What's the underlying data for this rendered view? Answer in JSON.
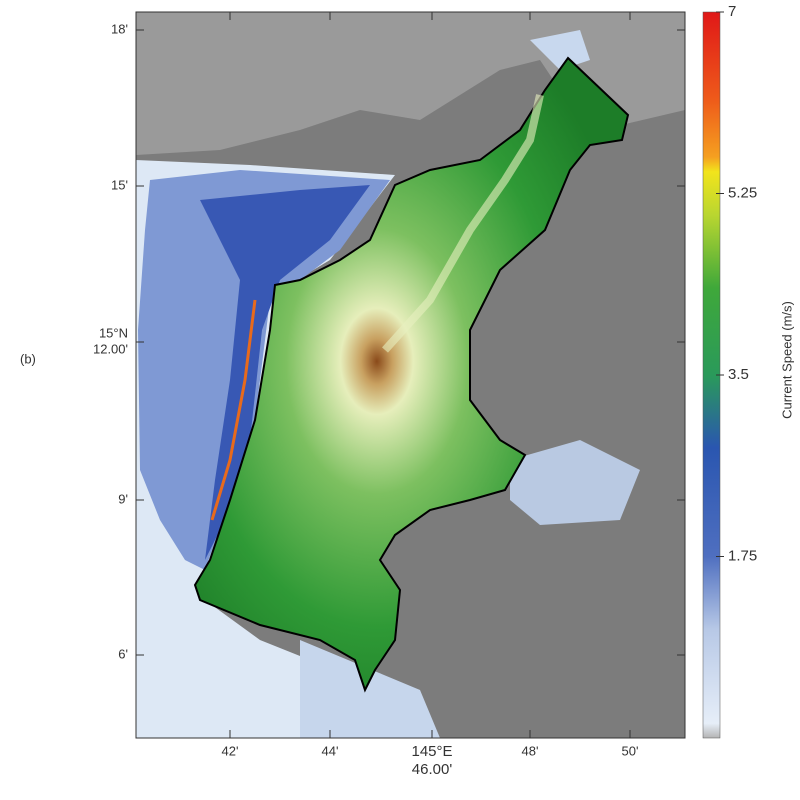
{
  "panel_label": "(b)",
  "map": {
    "lat_labels": [
      [
        "18'"
      ],
      [
        "15'"
      ],
      [
        "15°N",
        "12.00'"
      ],
      [
        "9'"
      ],
      [
        "6'"
      ]
    ],
    "lon_labels": [
      [
        "42'"
      ],
      [
        "44'"
      ],
      [
        "145°E",
        "46.00'"
      ],
      [
        "48'"
      ],
      [
        "50'"
      ]
    ]
  },
  "colorbar": {
    "label": "Current Speed (m/s)",
    "lim": [
      0,
      7
    ],
    "ticks": [
      1.75,
      3.5,
      5.25,
      7
    ]
  }
}
